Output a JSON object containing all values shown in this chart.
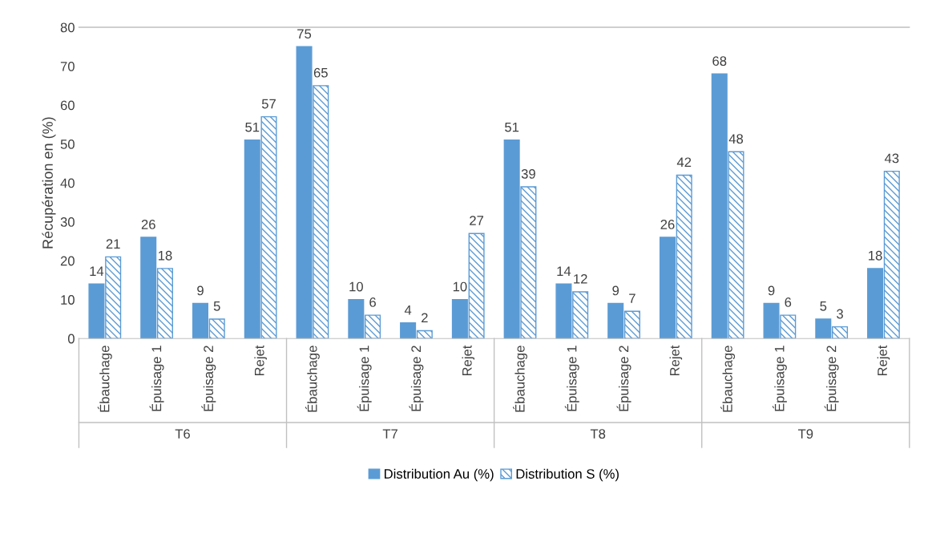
{
  "chart_data": {
    "type": "bar",
    "ylabel": "Récupération en (%)",
    "categories": [
      "Ébauchage",
      "Épuisage 1",
      "Épuisage 2",
      "Rejet",
      "Ébauchage",
      "Épuisage 1",
      "Épuisage 2",
      "Rejet",
      "Ébauchage",
      "Épuisage 1",
      "Épuisage 2",
      "Rejet",
      "Ébauchage",
      "Épuisage 1",
      "Épuisage 2",
      "Rejet"
    ],
    "series": [
      {
        "name": "Distribution Au (%)",
        "color": "#5b9bd5",
        "values": [
          14,
          26,
          9,
          51,
          75,
          10,
          4,
          10,
          51,
          14,
          9,
          26,
          68,
          9,
          5,
          18
        ]
      },
      {
        "name": "Distribution S (%)",
        "color": "#5b9bd5",
        "values": [
          21,
          18,
          5,
          57,
          65,
          6,
          2,
          27,
          39,
          12,
          7,
          42,
          48,
          6,
          3,
          43
        ]
      }
    ],
    "annotations": [
      "T6",
      "T7",
      "T8",
      "T9"
    ],
    "ylim": [
      0,
      80
    ],
    "yticks": [
      0,
      10,
      20,
      30,
      40,
      50,
      60,
      70,
      80
    ],
    "grid": false,
    "legend": "bottom",
    "data_labels": true
  }
}
